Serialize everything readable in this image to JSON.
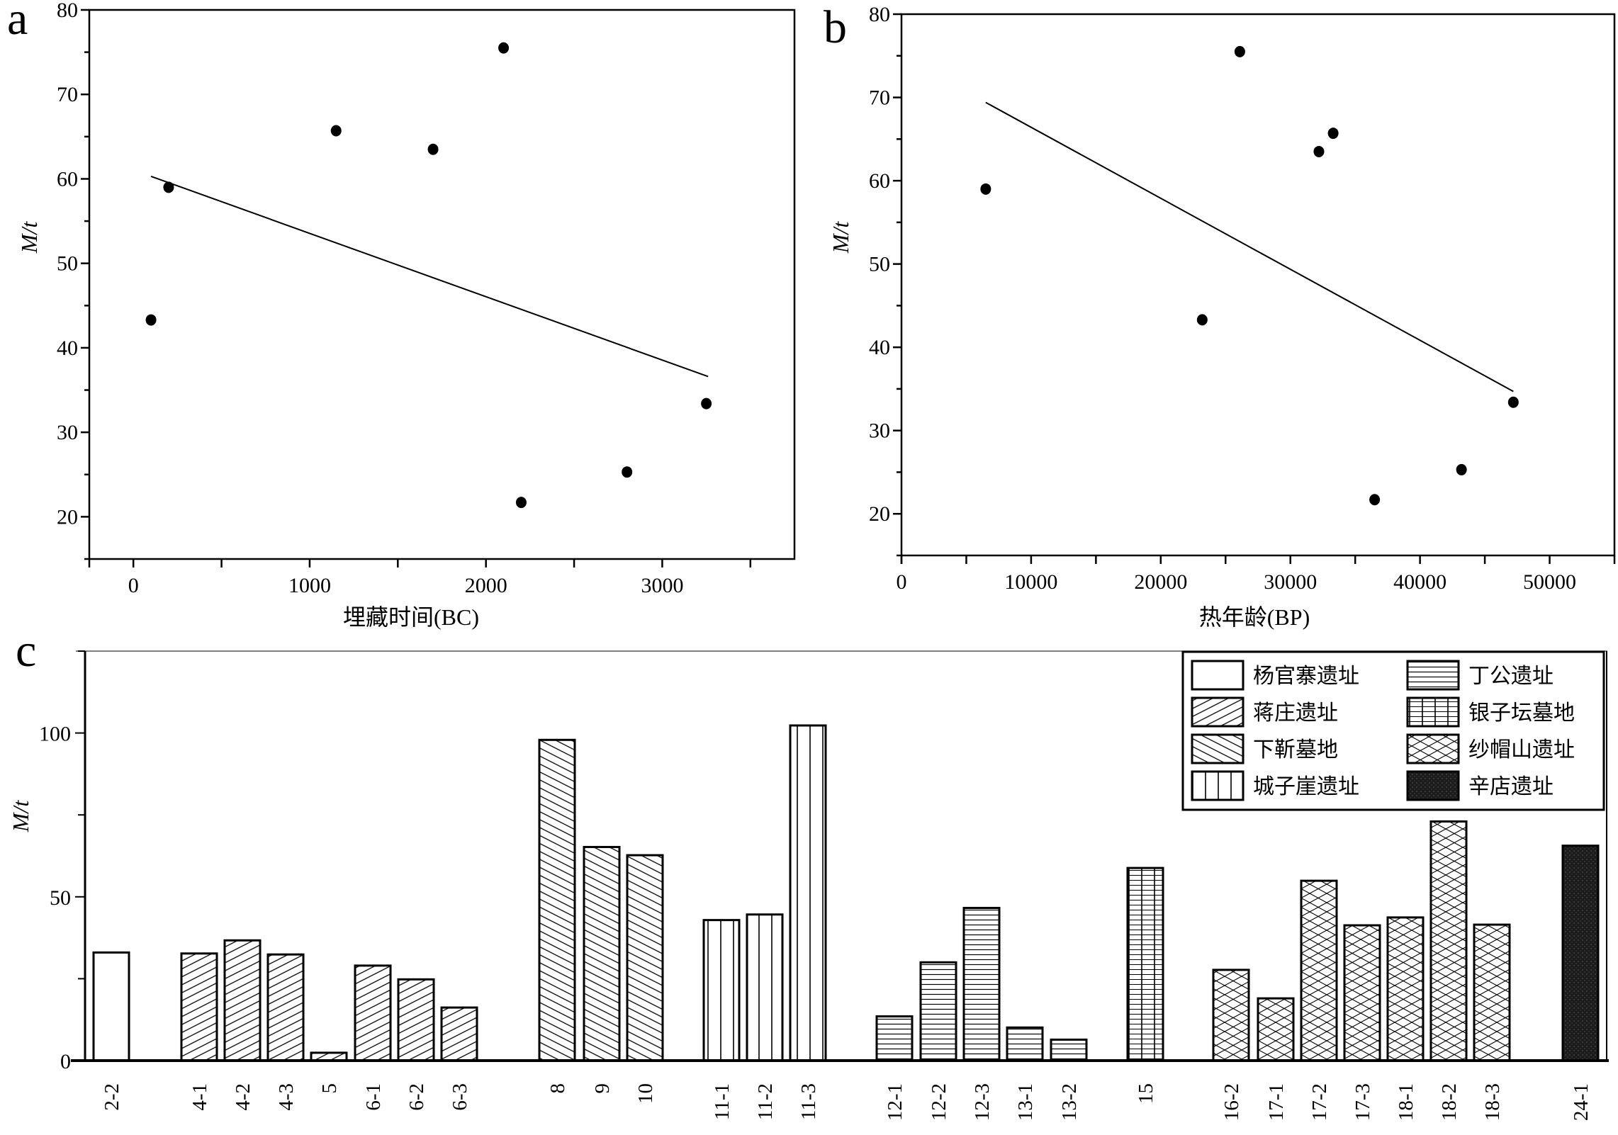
{
  "colors": {
    "ink": "#000000",
    "background": "#ffffff",
    "dark_fill": "#222222"
  },
  "chart_data": [
    {
      "id": "a",
      "type": "scatter",
      "panel_label": "a",
      "title": "",
      "xlabel": "埋藏时间(BC)",
      "ylabel": "M/t",
      "xlim": [
        -250,
        3750
      ],
      "ylim": [
        15,
        80
      ],
      "xticks": [
        0,
        1000,
        2000,
        3000
      ],
      "xtick_labels": [
        "0",
        "1000",
        "2000",
        "3000"
      ],
      "yticks": [
        20,
        30,
        40,
        50,
        60,
        70,
        80
      ],
      "ytick_labels": [
        "20",
        "30",
        "40",
        "50",
        "60",
        "70",
        "80"
      ],
      "grid": false,
      "points": [
        {
          "x": 100,
          "y": 43.3
        },
        {
          "x": 200,
          "y": 59.0
        },
        {
          "x": 1150,
          "y": 65.7
        },
        {
          "x": 1700,
          "y": 63.5
        },
        {
          "x": 2100,
          "y": 75.5
        },
        {
          "x": 2200,
          "y": 21.7
        },
        {
          "x": 2800,
          "y": 25.3
        },
        {
          "x": 3250,
          "y": 33.4
        }
      ],
      "fit_line": [
        {
          "x": 100,
          "y": 60.3
        },
        {
          "x": 3260,
          "y": 36.6
        }
      ]
    },
    {
      "id": "b",
      "type": "scatter",
      "panel_label": "b",
      "title": "",
      "xlabel": "热年龄(BP)",
      "ylabel": "M/t",
      "xlim": [
        0,
        55000
      ],
      "ylim": [
        15,
        80
      ],
      "xticks": [
        0,
        10000,
        20000,
        30000,
        40000,
        50000
      ],
      "xtick_labels": [
        "0",
        "10000",
        "20000",
        "30000",
        "40000",
        "50000"
      ],
      "yticks": [
        20,
        30,
        40,
        50,
        60,
        70,
        80
      ],
      "ytick_labels": [
        "20",
        "30",
        "40",
        "50",
        "60",
        "70",
        "80"
      ],
      "grid": false,
      "points": [
        {
          "x": 6500,
          "y": 59.0
        },
        {
          "x": 23200,
          "y": 43.3
        },
        {
          "x": 26100,
          "y": 75.5
        },
        {
          "x": 32200,
          "y": 63.5
        },
        {
          "x": 33300,
          "y": 65.7
        },
        {
          "x": 36500,
          "y": 21.7
        },
        {
          "x": 43200,
          "y": 25.3
        },
        {
          "x": 47200,
          "y": 33.4
        }
      ],
      "fit_line": [
        {
          "x": 6500,
          "y": 69.4
        },
        {
          "x": 47200,
          "y": 34.7
        }
      ]
    },
    {
      "id": "c",
      "type": "bar",
      "panel_label": "c",
      "title": "",
      "xlabel": "",
      "ylabel": "M/t",
      "ylim": [
        0,
        125
      ],
      "yticks": [
        0,
        50,
        100
      ],
      "ytick_labels": [
        "0",
        "50",
        "100"
      ],
      "grid": false,
      "legend_position": "top-right",
      "legend": [
        {
          "name": "杨官寨遗址",
          "pattern": "empty"
        },
        {
          "name": "丁公遗址",
          "pattern": "horizontal"
        },
        {
          "name": "蒋庄遗址",
          "pattern": "forward-diagonal"
        },
        {
          "name": "银子坛墓地",
          "pattern": "grid"
        },
        {
          "name": "下靳墓地",
          "pattern": "back-diagonal"
        },
        {
          "name": "纱帽山遗址",
          "pattern": "crosshatch"
        },
        {
          "name": "城子崖遗址",
          "pattern": "vertical"
        },
        {
          "name": "辛店遗址",
          "pattern": "dark"
        }
      ],
      "bars": [
        {
          "category": "2-2",
          "value": 33.0,
          "site": "杨官寨遗址"
        },
        {
          "category": "4-1",
          "value": 32.7,
          "site": "蒋庄遗址"
        },
        {
          "category": "4-2",
          "value": 36.7,
          "site": "蒋庄遗址"
        },
        {
          "category": "4-3",
          "value": 32.4,
          "site": "蒋庄遗址"
        },
        {
          "category": "5",
          "value": 2.4,
          "site": "蒋庄遗址"
        },
        {
          "category": "6-1",
          "value": 29.0,
          "site": "蒋庄遗址"
        },
        {
          "category": "6-2",
          "value": 24.8,
          "site": "蒋庄遗址"
        },
        {
          "category": "6-3",
          "value": 16.2,
          "site": "蒋庄遗址"
        },
        {
          "category": "8",
          "value": 97.9,
          "site": "下靳墓地"
        },
        {
          "category": "9",
          "value": 65.2,
          "site": "下靳墓地"
        },
        {
          "category": "10",
          "value": 62.7,
          "site": "下靳墓地"
        },
        {
          "category": "11-1",
          "value": 42.9,
          "site": "城子崖遗址"
        },
        {
          "category": "11-2",
          "value": 44.6,
          "site": "城子崖遗址"
        },
        {
          "category": "11-3",
          "value": 102.3,
          "site": "城子崖遗址"
        },
        {
          "category": "12-1",
          "value": 13.5,
          "site": "丁公遗址"
        },
        {
          "category": "12-2",
          "value": 30.0,
          "site": "丁公遗址"
        },
        {
          "category": "12-3",
          "value": 46.6,
          "site": "丁公遗址"
        },
        {
          "category": "13-1",
          "value": 10.1,
          "site": "丁公遗址"
        },
        {
          "category": "13-2",
          "value": 6.4,
          "site": "丁公遗址"
        },
        {
          "category": "15",
          "value": 58.8,
          "site": "银子坛墓地"
        },
        {
          "category": "16-2",
          "value": 27.7,
          "site": "纱帽山遗址"
        },
        {
          "category": "17-1",
          "value": 19.0,
          "site": "纱帽山遗址"
        },
        {
          "category": "17-2",
          "value": 54.9,
          "site": "纱帽山遗址"
        },
        {
          "category": "17-3",
          "value": 41.3,
          "site": "纱帽山遗址"
        },
        {
          "category": "18-1",
          "value": 43.7,
          "site": "纱帽山遗址"
        },
        {
          "category": "18-2",
          "value": 73.0,
          "site": "纱帽山遗址"
        },
        {
          "category": "18-3",
          "value": 41.5,
          "site": "纱帽山遗址"
        },
        {
          "category": "24-1",
          "value": 65.6,
          "site": "辛店遗址"
        }
      ]
    }
  ]
}
